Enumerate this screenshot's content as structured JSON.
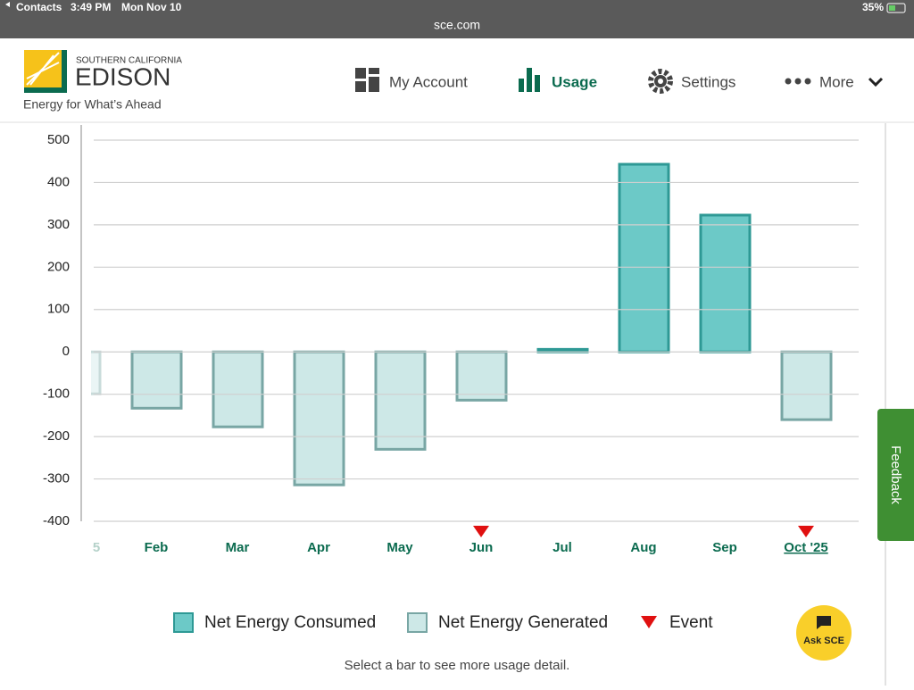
{
  "status_bar": {
    "back_app": "Contacts",
    "time": "3:49 PM",
    "date": "Mon Nov 10",
    "url": "sce.com",
    "battery": "35%"
  },
  "header": {
    "brand_top": "SOUTHERN CALIFORNIA",
    "brand": "EDISON",
    "tagline": "Energy for What’s Ahead"
  },
  "nav": {
    "items": [
      "My Account",
      "Usage",
      "Settings",
      "More"
    ]
  },
  "chart_data": {
    "type": "bar",
    "categories": [
      "5",
      "Feb",
      "Mar",
      "Apr",
      "May",
      "Jun",
      "Jul",
      "Aug",
      "Sep",
      "Oct '25"
    ],
    "series": [
      {
        "name": "Net Energy Consumed",
        "color": "#6cc9c7",
        "edge_color": "#2e9995",
        "values": [
          null,
          null,
          null,
          null,
          null,
          null,
          6,
          443,
          323,
          null
        ]
      },
      {
        "name": "Net Energy Generated",
        "color": "#cde8e7",
        "edge_color": "#78a6a4",
        "values": [
          -99,
          -133,
          -177,
          -314,
          -230,
          -114,
          null,
          null,
          null,
          -160
        ]
      }
    ],
    "event_flags": [
      false,
      false,
      false,
      false,
      false,
      true,
      false,
      false,
      false,
      true
    ],
    "event_legend": "Event",
    "event_color": "#e01010",
    "ylim": [
      -400,
      500
    ],
    "yticks": [
      500,
      400,
      300,
      200,
      100,
      0,
      -100,
      -200,
      -300,
      -400
    ],
    "grid": true
  },
  "hint": "Select a bar to see more usage detail.",
  "feedback": "Feedback",
  "ask": "Ask SCE"
}
